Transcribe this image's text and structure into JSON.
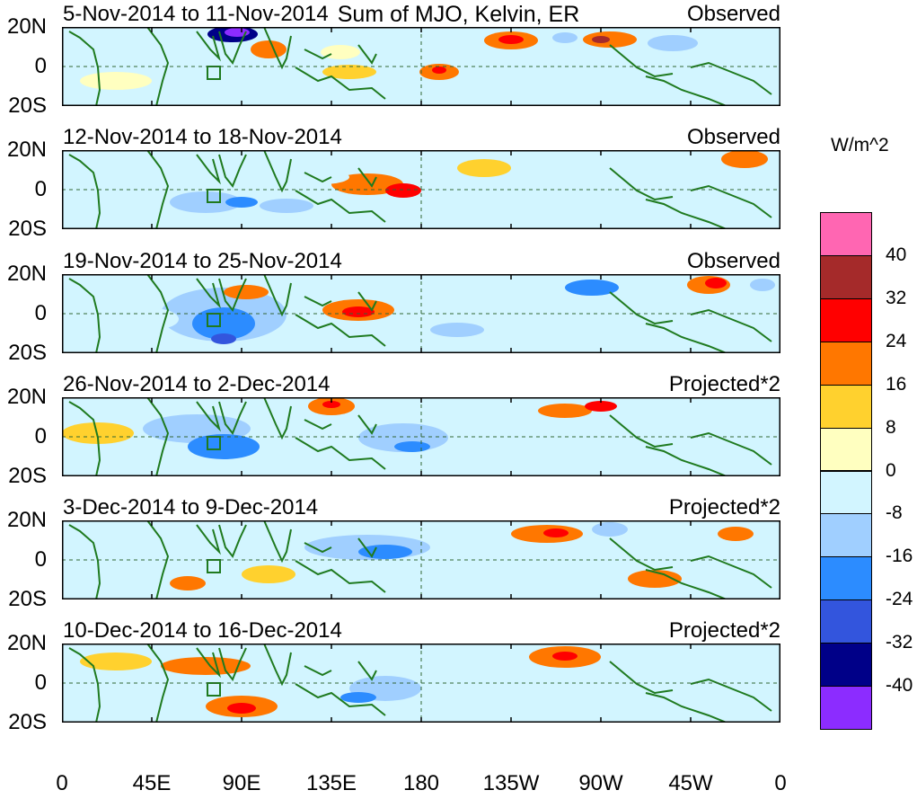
{
  "title": "Sum of MJO, Kelvin, ER",
  "lat_labels": [
    "20N",
    "0",
    "20S"
  ],
  "lon_labels": [
    "0",
    "45E",
    "90E",
    "135E",
    "180",
    "135W",
    "90W",
    "45W",
    "0"
  ],
  "panels": [
    {
      "period": "5-Nov-2014 to 11-Nov-2014",
      "mode": "Observed"
    },
    {
      "period": "12-Nov-2014 to 18-Nov-2014",
      "mode": "Observed"
    },
    {
      "period": "19-Nov-2014 to 25-Nov-2014",
      "mode": "Observed"
    },
    {
      "period": "26-Nov-2014 to 2-Dec-2014",
      "mode": "Projected*2"
    },
    {
      "period": "3-Dec-2014 to 9-Dec-2014",
      "mode": "Projected*2"
    },
    {
      "period": "10-Dec-2014 to 16-Dec-2014",
      "mode": "Projected*2"
    }
  ],
  "colorbar": {
    "units": "W/m^2",
    "labels": [
      "40",
      "32",
      "24",
      "16",
      "8",
      "0",
      "-8",
      "-16",
      "-24",
      "-32",
      "-40"
    ],
    "colors": [
      "#ff66b2",
      "#a52a2a",
      "#ff0000",
      "#ff7700",
      "#ffd12e",
      "#ffffc0",
      "#d2f5ff",
      "#a0cfff",
      "#2c8cff",
      "#3355dd",
      "#000088",
      "#8c2cff"
    ]
  }
}
